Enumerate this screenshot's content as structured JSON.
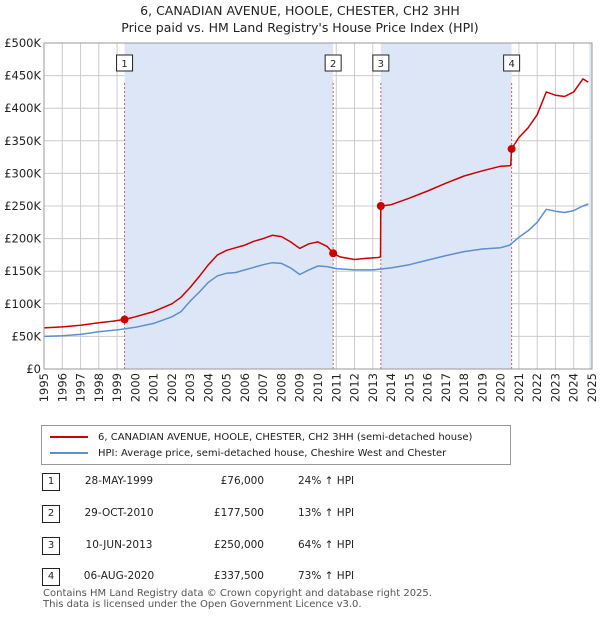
{
  "chart_data": {
    "type": "line",
    "title": "6, CANADIAN AVENUE, HOOLE, CHESTER, CH2 3HH",
    "subtitle": "Price paid vs. HM Land Registry's House Price Index (HPI)",
    "xlim": [
      1995,
      2025
    ],
    "ylim": [
      0,
      500000
    ],
    "x_ticks": [
      "1995",
      "1996",
      "1997",
      "1998",
      "1999",
      "2000",
      "2001",
      "2002",
      "2003",
      "2004",
      "2005",
      "2006",
      "2007",
      "2008",
      "2009",
      "2010",
      "2011",
      "2012",
      "2013",
      "2014",
      "2015",
      "2016",
      "2017",
      "2018",
      "2019",
      "2020",
      "2021",
      "2022",
      "2023",
      "2024",
      "2025"
    ],
    "y_ticks": [
      {
        "value": 0,
        "label": "£0"
      },
      {
        "value": 50000,
        "label": "£50K"
      },
      {
        "value": 100000,
        "label": "£100K"
      },
      {
        "value": 150000,
        "label": "£150K"
      },
      {
        "value": 200000,
        "label": "£200K"
      },
      {
        "value": 250000,
        "label": "£250K"
      },
      {
        "value": 300000,
        "label": "£300K"
      },
      {
        "value": 350000,
        "label": "£350K"
      },
      {
        "value": 400000,
        "label": "£400K"
      },
      {
        "value": 450000,
        "label": "£450K"
      },
      {
        "value": 500000,
        "label": "£500K"
      }
    ],
    "series": [
      {
        "name": "6, CANADIAN AVENUE, HOOLE, CHESTER, CH2 3HH (semi-detached house)",
        "color": "#cc0000",
        "points": [
          [
            1995.0,
            63000
          ],
          [
            1996.0,
            64500
          ],
          [
            1997.0,
            67000
          ],
          [
            1998.0,
            71000
          ],
          [
            1998.8,
            73500
          ],
          [
            1999.41,
            76000
          ],
          [
            2000.0,
            80000
          ],
          [
            2001.0,
            88000
          ],
          [
            2002.0,
            100000
          ],
          [
            2002.5,
            110000
          ],
          [
            2003.0,
            125000
          ],
          [
            2003.5,
            142000
          ],
          [
            2004.0,
            160000
          ],
          [
            2004.5,
            175000
          ],
          [
            2005.0,
            182000
          ],
          [
            2005.5,
            186000
          ],
          [
            2006.0,
            190000
          ],
          [
            2006.5,
            196000
          ],
          [
            2007.0,
            200000
          ],
          [
            2007.5,
            205000
          ],
          [
            2008.0,
            203000
          ],
          [
            2008.5,
            195000
          ],
          [
            2009.0,
            185000
          ],
          [
            2009.5,
            192000
          ],
          [
            2010.0,
            195000
          ],
          [
            2010.5,
            188000
          ],
          [
            2010.83,
            177500
          ],
          [
            2011.2,
            172000
          ],
          [
            2012.0,
            168000
          ],
          [
            2012.7,
            170000
          ],
          [
            2013.3,
            171000
          ],
          [
            2013.42,
            172000
          ],
          [
            2013.44,
            250000
          ],
          [
            2014.0,
            252000
          ],
          [
            2015.0,
            262000
          ],
          [
            2016.0,
            273000
          ],
          [
            2017.0,
            285000
          ],
          [
            2018.0,
            296000
          ],
          [
            2019.0,
            304000
          ],
          [
            2020.0,
            311000
          ],
          [
            2020.55,
            312000
          ],
          [
            2020.6,
            337500
          ],
          [
            2021.0,
            355000
          ],
          [
            2021.5,
            370000
          ],
          [
            2022.0,
            390000
          ],
          [
            2022.5,
            425000
          ],
          [
            2023.0,
            420000
          ],
          [
            2023.5,
            418000
          ],
          [
            2024.0,
            425000
          ],
          [
            2024.5,
            445000
          ],
          [
            2024.8,
            440000
          ]
        ]
      },
      {
        "name": "HPI: Average price, semi-detached house, Cheshire West and Chester",
        "color": "#5b8fd0",
        "points": [
          [
            1995.0,
            50000
          ],
          [
            1996.0,
            51000
          ],
          [
            1997.0,
            53000
          ],
          [
            1998.0,
            57000
          ],
          [
            1999.0,
            60000
          ],
          [
            2000.0,
            64000
          ],
          [
            2001.0,
            70000
          ],
          [
            2002.0,
            80000
          ],
          [
            2002.5,
            88000
          ],
          [
            2003.0,
            104000
          ],
          [
            2003.5,
            118000
          ],
          [
            2004.0,
            133000
          ],
          [
            2004.5,
            143000
          ],
          [
            2005.0,
            147000
          ],
          [
            2005.5,
            148000
          ],
          [
            2006.0,
            152000
          ],
          [
            2006.5,
            156000
          ],
          [
            2007.0,
            160000
          ],
          [
            2007.5,
            163000
          ],
          [
            2008.0,
            162000
          ],
          [
            2008.5,
            155000
          ],
          [
            2009.0,
            145000
          ],
          [
            2009.5,
            152000
          ],
          [
            2010.0,
            158000
          ],
          [
            2010.5,
            157000
          ],
          [
            2011.0,
            154000
          ],
          [
            2012.0,
            152000
          ],
          [
            2013.0,
            152000
          ],
          [
            2014.0,
            155000
          ],
          [
            2015.0,
            160000
          ],
          [
            2016.0,
            167000
          ],
          [
            2017.0,
            174000
          ],
          [
            2018.0,
            180000
          ],
          [
            2019.0,
            184000
          ],
          [
            2020.0,
            186000
          ],
          [
            2020.5,
            190000
          ],
          [
            2021.0,
            202000
          ],
          [
            2021.5,
            212000
          ],
          [
            2022.0,
            225000
          ],
          [
            2022.5,
            245000
          ],
          [
            2023.0,
            242000
          ],
          [
            2023.5,
            240000
          ],
          [
            2024.0,
            243000
          ],
          [
            2024.5,
            250000
          ],
          [
            2024.8,
            253000
          ]
        ]
      }
    ],
    "sales": [
      {
        "label": "1",
        "x": 1999.41,
        "value": 76000
      },
      {
        "label": "2",
        "x": 2010.83,
        "value": 177500
      },
      {
        "label": "3",
        "x": 2013.44,
        "value": 250000
      },
      {
        "label": "4",
        "x": 2020.6,
        "value": 337500
      }
    ],
    "highlight_color": "#dde6f6",
    "grid_color": "#cccccc",
    "vline_color": "#d06060"
  },
  "legend": {
    "property_label": "6, CANADIAN AVENUE, HOOLE, CHESTER, CH2 3HH (semi-detached house)",
    "hpi_label": "HPI: Average price, semi-detached house, Cheshire West and Chester"
  },
  "sales_table": [
    {
      "num": "1",
      "date": "28-MAY-1999",
      "price": "£76,000",
      "hpi": "24% ↑ HPI"
    },
    {
      "num": "2",
      "date": "29-OCT-2010",
      "price": "£177,500",
      "hpi": "13% ↑ HPI"
    },
    {
      "num": "3",
      "date": "10-JUN-2013",
      "price": "£250,000",
      "hpi": "64% ↑ HPI"
    },
    {
      "num": "4",
      "date": "06-AUG-2020",
      "price": "£337,500",
      "hpi": "73% ↑ HPI"
    }
  ],
  "footer": {
    "line1": "Contains HM Land Registry data © Crown copyright and database right 2025.",
    "line2": "This data is licensed under the Open Government Licence v3.0."
  }
}
